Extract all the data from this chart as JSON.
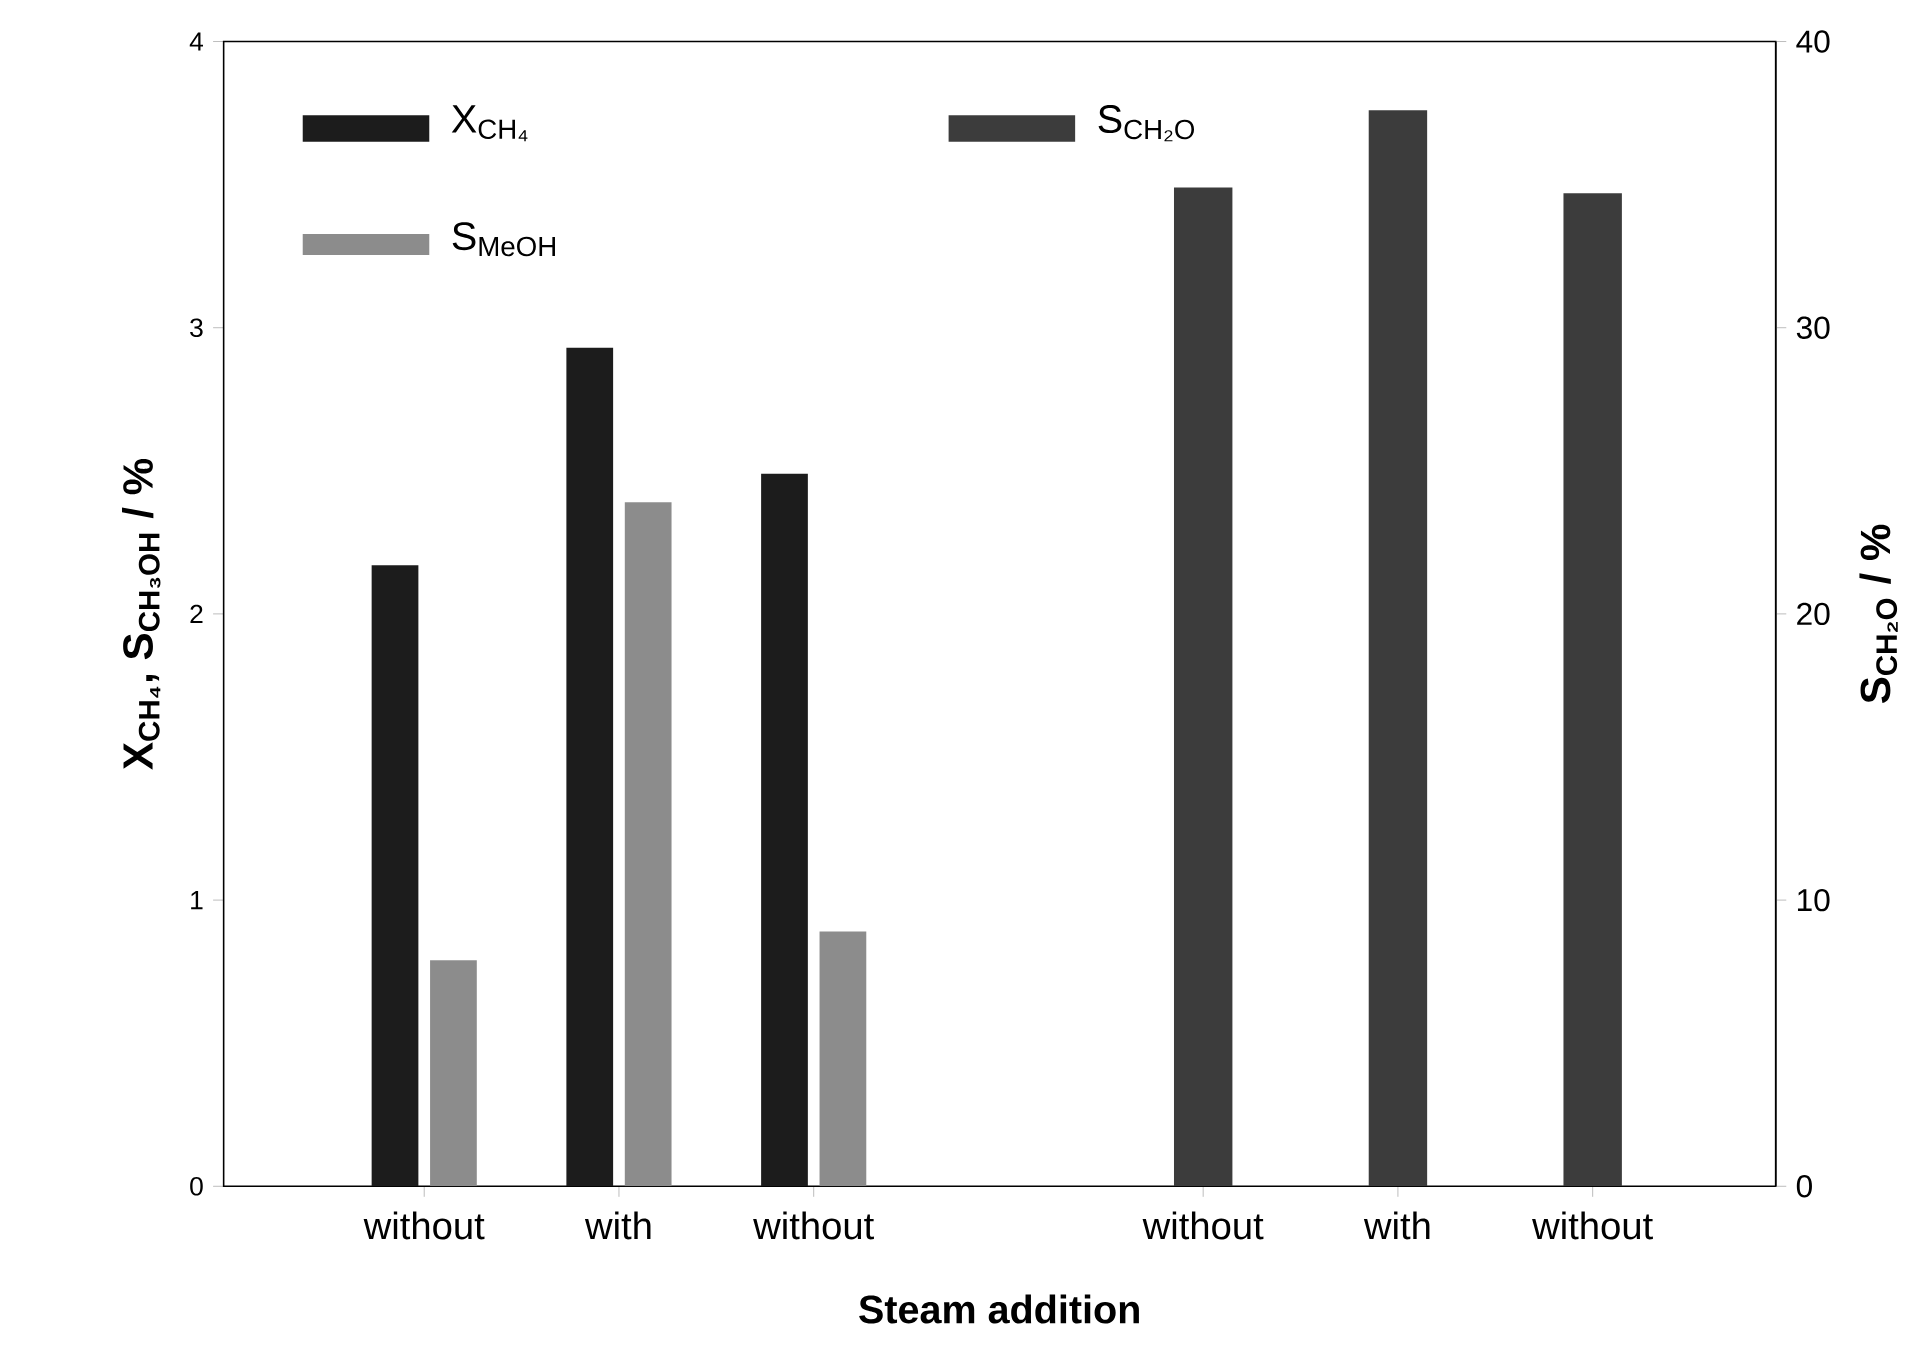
{
  "chart_data": {
    "type": "bar",
    "xlabel": "Steam addition",
    "ylabel": "X$_{CH₄}$, S$_{CH₃OH}$ / %",
    "y2label": "S$_{CH₂O}$ / %",
    "categories": [
      "without",
      "with",
      "without",
      null,
      "without",
      "with",
      "without"
    ],
    "series": [
      {
        "name": "X$_{CH₄}$",
        "color": "#1c1c1c",
        "values": [
          2.17,
          2.93,
          2.49,
          null,
          null,
          null,
          null
        ]
      },
      {
        "name": "S$_{MeOH}$",
        "color": "#8c8c8c",
        "values": [
          0.79,
          2.39,
          0.89,
          null,
          null,
          null,
          null
        ]
      },
      {
        "name": "S$_{CH₂O}$",
        "color": "#3c3c3c",
        "axis": "y2",
        "values": [
          null,
          null,
          null,
          null,
          34.9,
          37.6,
          34.7
        ]
      }
    ],
    "ylim": [
      0,
      4
    ],
    "yticks": [
      0,
      1,
      2,
      3,
      4
    ],
    "y2lim": [
      0,
      40
    ],
    "y2ticks": [
      0,
      10,
      20,
      30,
      40
    ],
    "legend": "top"
  }
}
